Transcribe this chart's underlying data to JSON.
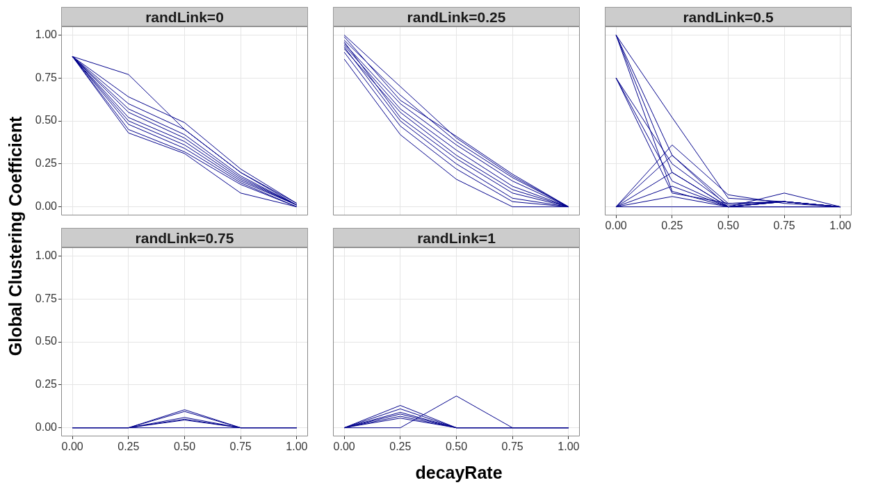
{
  "chart_data": [
    {
      "type": "line",
      "title": "randLink=0",
      "ylabel": "Global Clustering Coefficient",
      "x": [
        0,
        0.25,
        0.5,
        0.75,
        1
      ],
      "xlim": [
        -0.05,
        1.05
      ],
      "ylim": [
        -0.05,
        1.05
      ],
      "yticks": [
        {
          "value": 0,
          "label": "0.00"
        },
        {
          "value": 0.25,
          "label": "0.25"
        },
        {
          "value": 0.5,
          "label": "0.50"
        },
        {
          "value": 0.75,
          "label": "0.75"
        },
        {
          "value": 1,
          "label": "1.00"
        }
      ],
      "grid": true,
      "legend": false,
      "tick_labels": "y",
      "series": [
        {
          "color": "#00008b",
          "values": [
            0.875,
            0.77,
            0.45,
            0.2,
            0.01
          ]
        },
        {
          "color": "#00008b",
          "values": [
            0.875,
            0.64,
            0.49,
            0.22,
            0.02
          ]
        },
        {
          "color": "#00008b",
          "values": [
            0.875,
            0.6,
            0.45,
            0.2,
            0.02
          ]
        },
        {
          "color": "#00008b",
          "values": [
            0.875,
            0.57,
            0.42,
            0.18,
            0.01
          ]
        },
        {
          "color": "#00008b",
          "values": [
            0.875,
            0.55,
            0.4,
            0.17,
            0.01
          ]
        },
        {
          "color": "#00008b",
          "values": [
            0.875,
            0.52,
            0.38,
            0.16,
            0.01
          ]
        },
        {
          "color": "#00008b",
          "values": [
            0.875,
            0.5,
            0.36,
            0.15,
            0.01
          ]
        },
        {
          "color": "#00008b",
          "values": [
            0.875,
            0.48,
            0.34,
            0.14,
            0
          ]
        },
        {
          "color": "#00008b",
          "values": [
            0.875,
            0.45,
            0.32,
            0.13,
            0
          ]
        },
        {
          "color": "#00008b",
          "values": [
            0.875,
            0.43,
            0.31,
            0.08,
            0
          ]
        }
      ]
    },
    {
      "type": "line",
      "title": "randLink=0.25",
      "x": [
        0,
        0.25,
        0.5,
        0.75,
        1
      ],
      "xlim": [
        -0.05,
        1.05
      ],
      "ylim": [
        -0.05,
        1.05
      ],
      "grid": true,
      "legend": false,
      "tick_labels": false,
      "series": [
        {
          "color": "#00008b",
          "values": [
            1,
            0.7,
            0.4,
            0.18,
            0
          ]
        },
        {
          "color": "#00008b",
          "values": [
            0.97,
            0.65,
            0.38,
            0.17,
            0
          ]
        },
        {
          "color": "#00008b",
          "values": [
            0.95,
            0.6,
            0.36,
            0.15,
            0
          ]
        },
        {
          "color": "#00008b",
          "values": [
            0.94,
            0.57,
            0.33,
            0.12,
            0
          ]
        },
        {
          "color": "#00008b",
          "values": [
            0.92,
            0.55,
            0.3,
            0.1,
            0
          ]
        },
        {
          "color": "#00008b",
          "values": [
            0.96,
            0.52,
            0.28,
            0.08,
            0
          ]
        },
        {
          "color": "#00008b",
          "values": [
            0.93,
            0.5,
            0.25,
            0.05,
            0
          ]
        },
        {
          "color": "#00008b",
          "values": [
            0.9,
            0.47,
            0.22,
            0.03,
            0
          ]
        },
        {
          "color": "#00008b",
          "values": [
            0.86,
            0.42,
            0.16,
            0,
            0
          ]
        },
        {
          "color": "#00008b",
          "values": [
            0.99,
            0.62,
            0.41,
            0.19,
            0
          ]
        }
      ]
    },
    {
      "type": "line",
      "title": "randLink=0.5",
      "x": [
        0,
        0.25,
        0.5,
        0.75,
        1
      ],
      "xlim": [
        -0.05,
        1.05
      ],
      "ylim": [
        -0.05,
        1.05
      ],
      "xticks": [
        {
          "value": 0,
          "label": "0.00"
        },
        {
          "value": 0.25,
          "label": "0.25"
        },
        {
          "value": 0.5,
          "label": "0.50"
        },
        {
          "value": 0.75,
          "label": "0.75"
        },
        {
          "value": 1,
          "label": "1.00"
        }
      ],
      "grid": true,
      "legend": false,
      "tick_labels": "x",
      "series": [
        {
          "color": "#00008b",
          "values": [
            1,
            0.52,
            0.05,
            0.03,
            0
          ]
        },
        {
          "color": "#00008b",
          "values": [
            1,
            0.3,
            0.02,
            0.03,
            0
          ]
        },
        {
          "color": "#00008b",
          "values": [
            1,
            0.2,
            0,
            0.03,
            0
          ]
        },
        {
          "color": "#00008b",
          "values": [
            1,
            0.09,
            0,
            0.03,
            0
          ]
        },
        {
          "color": "#00008b",
          "values": [
            0.75,
            0.25,
            0.01,
            0.03,
            0
          ]
        },
        {
          "color": "#00008b",
          "values": [
            0.75,
            0.15,
            0,
            0,
            0
          ]
        },
        {
          "color": "#00008b",
          "values": [
            0.75,
            0.08,
            0.02,
            0.03,
            0
          ]
        },
        {
          "color": "#00008b",
          "values": [
            0,
            0.36,
            0.07,
            0.02,
            0
          ]
        },
        {
          "color": "#00008b",
          "values": [
            0,
            0.3,
            0,
            0.08,
            0
          ]
        },
        {
          "color": "#00008b",
          "values": [
            0,
            0.2,
            0,
            0.03,
            0
          ]
        },
        {
          "color": "#00008b",
          "values": [
            0,
            0.12,
            0,
            0.03,
            0
          ]
        },
        {
          "color": "#00008b",
          "values": [
            0,
            0.06,
            0,
            0,
            0
          ]
        },
        {
          "color": "#00008b",
          "values": [
            0,
            0,
            0,
            0,
            0
          ]
        }
      ]
    },
    {
      "type": "line",
      "title": "randLink=0.75",
      "x": [
        0,
        0.25,
        0.5,
        0.75,
        1
      ],
      "xlim": [
        -0.05,
        1.05
      ],
      "ylim": [
        -0.05,
        1.05
      ],
      "xticks": [
        {
          "value": 0,
          "label": "0.00"
        },
        {
          "value": 0.25,
          "label": "0.25"
        },
        {
          "value": 0.5,
          "label": "0.50"
        },
        {
          "value": 0.75,
          "label": "0.75"
        },
        {
          "value": 1,
          "label": "1.00"
        }
      ],
      "yticks": [
        {
          "value": 0,
          "label": "0.00"
        },
        {
          "value": 0.25,
          "label": "0.25"
        },
        {
          "value": 0.5,
          "label": "0.50"
        },
        {
          "value": 0.75,
          "label": "0.75"
        },
        {
          "value": 1,
          "label": "1.00"
        }
      ],
      "grid": true,
      "legend": false,
      "series": [
        {
          "color": "#00008b",
          "values": [
            0,
            0,
            0.105,
            0,
            0
          ]
        },
        {
          "color": "#00008b",
          "values": [
            0,
            0,
            0.095,
            0,
            0
          ]
        },
        {
          "color": "#00008b",
          "values": [
            0,
            0,
            0.06,
            0,
            0
          ]
        },
        {
          "color": "#00008b",
          "values": [
            0,
            0,
            0.05,
            0,
            0
          ]
        },
        {
          "color": "#00008b",
          "values": [
            0,
            0,
            0.045,
            0,
            0
          ]
        },
        {
          "color": "#00008b",
          "values": [
            0,
            0,
            0,
            0,
            0
          ]
        }
      ]
    },
    {
      "type": "line",
      "title": "randLink=1",
      "xlabel": "decayRate",
      "x": [
        0,
        0.25,
        0.5,
        0.75,
        1
      ],
      "xlim": [
        -0.05,
        1.05
      ],
      "ylim": [
        -0.05,
        1.05
      ],
      "xticks": [
        {
          "value": 0,
          "label": "0.00"
        },
        {
          "value": 0.25,
          "label": "0.25"
        },
        {
          "value": 0.5,
          "label": "0.50"
        },
        {
          "value": 0.75,
          "label": "0.75"
        },
        {
          "value": 1,
          "label": "1.00"
        }
      ],
      "grid": true,
      "legend": false,
      "tick_labels": "x",
      "series": [
        {
          "color": "#00008b",
          "values": [
            0,
            0.13,
            0,
            0,
            0
          ]
        },
        {
          "color": "#00008b",
          "values": [
            0,
            0.11,
            0,
            0,
            0
          ]
        },
        {
          "color": "#00008b",
          "values": [
            0,
            0.09,
            0,
            0,
            0
          ]
        },
        {
          "color": "#00008b",
          "values": [
            0,
            0.08,
            0,
            0,
            0
          ]
        },
        {
          "color": "#00008b",
          "values": [
            0,
            0.067,
            0,
            0,
            0
          ]
        },
        {
          "color": "#00008b",
          "values": [
            0,
            0.056,
            0,
            0,
            0
          ]
        },
        {
          "color": "#00008b",
          "values": [
            0,
            0,
            0.185,
            0,
            0
          ]
        }
      ]
    }
  ]
}
